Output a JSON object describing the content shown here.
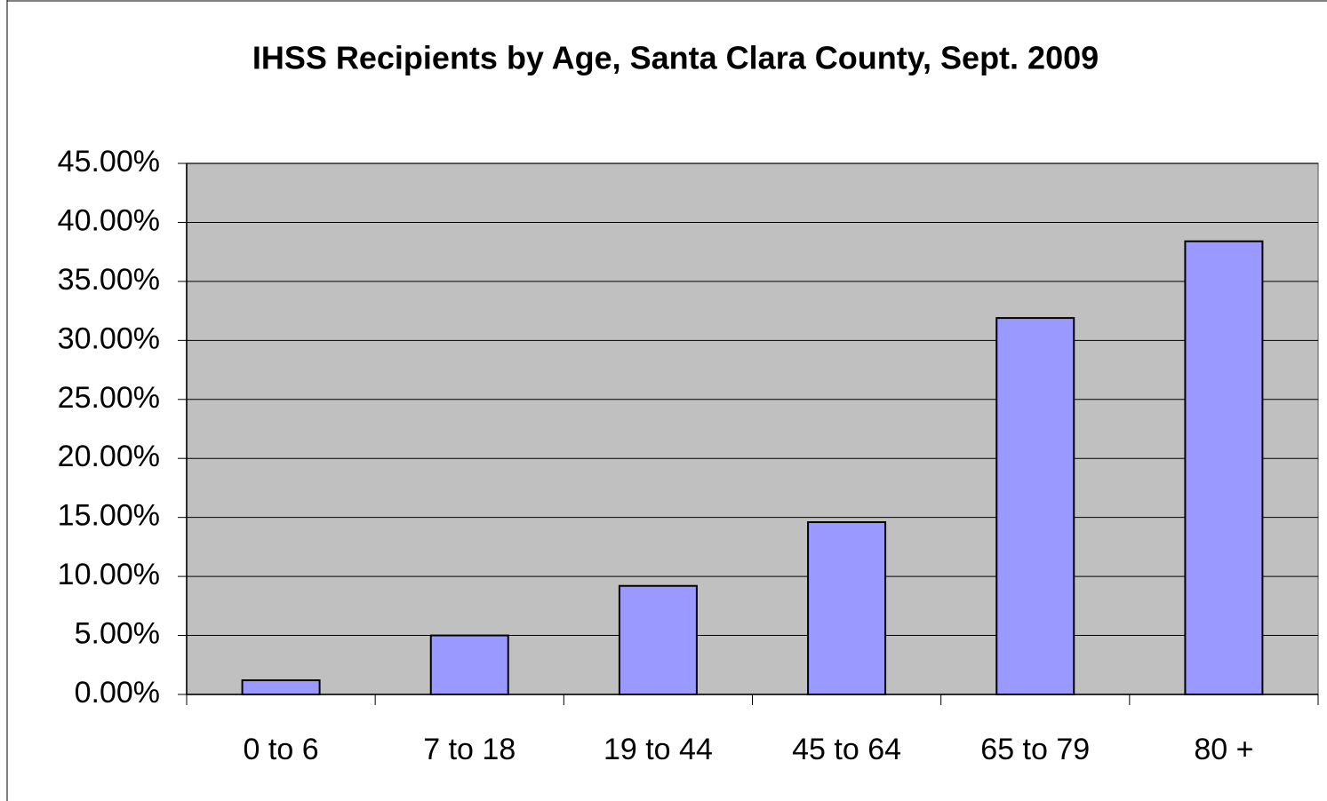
{
  "chart_data": {
    "type": "bar",
    "title": "IHSS Recipients by Age, Santa Clara County, Sept. 2009",
    "categories": [
      "0 to 6",
      "7 to 18",
      "19 to 44",
      "45 to 64",
      "65 to 79",
      "80 +"
    ],
    "values": [
      1.2,
      5.0,
      9.2,
      14.6,
      31.9,
      38.4
    ],
    "color": "#9999ff",
    "ylim": [
      0,
      45
    ],
    "yticks": [
      {
        "value": 0,
        "label": "0.00%"
      },
      {
        "value": 5,
        "label": "5.00%"
      },
      {
        "value": 10,
        "label": "10.00%"
      },
      {
        "value": 15,
        "label": "15.00%"
      },
      {
        "value": 20,
        "label": "20.00%"
      },
      {
        "value": 25,
        "label": "25.00%"
      },
      {
        "value": 30,
        "label": "30.00%"
      },
      {
        "value": 35,
        "label": "35.00%"
      },
      {
        "value": 40,
        "label": "40.00%"
      },
      {
        "value": 45,
        "label": "45.00%"
      }
    ],
    "grid": true
  }
}
